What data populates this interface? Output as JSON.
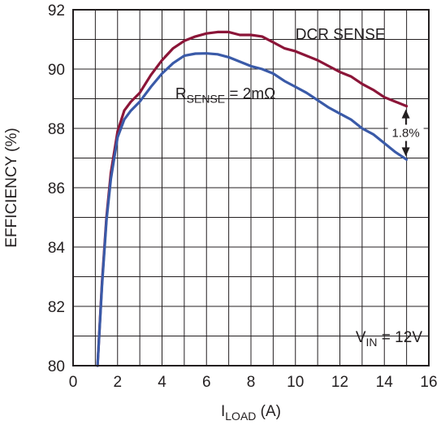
{
  "chart_data": {
    "type": "line",
    "xlabel_main": "I",
    "xlabel_sub": "LOAD",
    "xlabel_unit": " (A)",
    "ylabel": "EFFICIENCY (%)",
    "xlim": [
      0,
      16
    ],
    "ylim": [
      80,
      92
    ],
    "xticks": [
      0,
      2,
      4,
      6,
      8,
      10,
      12,
      14,
      16
    ],
    "yticks": [
      80,
      82,
      84,
      86,
      88,
      90,
      92
    ],
    "grid": true,
    "series": [
      {
        "name": "DCR SENSE",
        "color": "#8b1538",
        "x": [
          1.1,
          1.3,
          1.5,
          1.7,
          2.0,
          2.3,
          2.6,
          3.0,
          3.5,
          4.0,
          4.5,
          5.0,
          5.5,
          6.0,
          6.5,
          7.0,
          7.5,
          8.0,
          8.5,
          9.0,
          9.5,
          10.0,
          10.5,
          11.0,
          11.5,
          12.0,
          12.5,
          13.0,
          13.5,
          14.0,
          14.5,
          15.0
        ],
        "y": [
          80.0,
          82.8,
          85.0,
          86.5,
          87.9,
          88.6,
          88.9,
          89.2,
          89.8,
          90.3,
          90.7,
          90.95,
          91.1,
          91.2,
          91.25,
          91.25,
          91.15,
          91.15,
          91.1,
          90.9,
          90.7,
          90.6,
          90.45,
          90.3,
          90.1,
          89.9,
          89.75,
          89.5,
          89.3,
          89.05,
          88.9,
          88.75
        ]
      },
      {
        "name": "RSENSE = 2mΩ",
        "name_main": "R",
        "name_sub": "SENSE",
        "name_rest": " = 2mΩ",
        "color": "#3a5aa8",
        "x": [
          1.1,
          1.3,
          1.5,
          1.7,
          2.0,
          2.3,
          2.6,
          3.0,
          3.5,
          4.0,
          4.5,
          5.0,
          5.5,
          6.0,
          6.5,
          7.0,
          7.5,
          8.0,
          8.5,
          9.0,
          9.5,
          10.0,
          10.5,
          11.0,
          11.5,
          12.0,
          12.5,
          13.0,
          13.5,
          14.0,
          14.5,
          15.0
        ],
        "y": [
          80.0,
          82.7,
          84.9,
          86.3,
          87.7,
          88.3,
          88.6,
          88.9,
          89.4,
          89.85,
          90.2,
          90.45,
          90.52,
          90.53,
          90.5,
          90.4,
          90.25,
          90.1,
          90.0,
          89.85,
          89.6,
          89.4,
          89.2,
          88.95,
          88.7,
          88.5,
          88.3,
          88.0,
          87.8,
          87.5,
          87.2,
          86.95
        ]
      }
    ],
    "annotations": {
      "delta_label": "1.8%",
      "delta_x": 15,
      "delta_y_top": 88.75,
      "delta_y_bottom": 86.95,
      "vin_main": "V",
      "vin_sub": "IN",
      "vin_rest": " = 12V"
    }
  }
}
